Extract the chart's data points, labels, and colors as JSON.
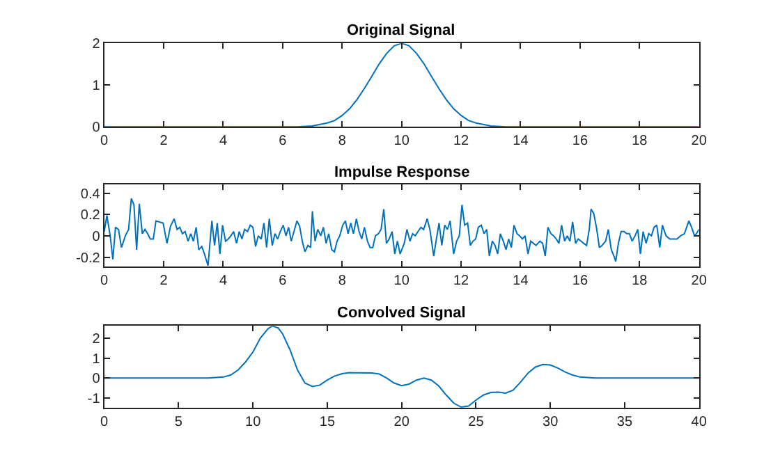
{
  "chart_data": [
    {
      "type": "line",
      "title": "Original Signal",
      "xlim": [
        0,
        20
      ],
      "xticks": [
        0,
        2,
        4,
        6,
        8,
        10,
        12,
        14,
        16,
        18,
        20
      ],
      "ylim": [
        0,
        2
      ],
      "yticks": [
        0,
        1,
        2
      ],
      "series": [
        {
          "color": "#0072bd",
          "x": [
            0,
            6.5,
            7,
            7.5,
            7.75,
            8,
            8.25,
            8.5,
            8.75,
            9,
            9.25,
            9.5,
            9.75,
            10,
            10.25,
            10.5,
            10.75,
            11,
            11.25,
            11.5,
            11.75,
            12,
            12.25,
            12.5,
            13,
            13.5,
            20
          ],
          "values": [
            0,
            0,
            0.02,
            0.09,
            0.15,
            0.27,
            0.43,
            0.65,
            0.92,
            1.21,
            1.51,
            1.76,
            1.94,
            2,
            1.94,
            1.76,
            1.51,
            1.21,
            0.92,
            0.65,
            0.43,
            0.27,
            0.15,
            0.09,
            0.02,
            0,
            0
          ]
        }
      ]
    },
    {
      "type": "line",
      "title": "Impulse Response",
      "xlim": [
        0,
        20
      ],
      "xticks": [
        0,
        2,
        4,
        6,
        8,
        10,
        12,
        14,
        16,
        18,
        20
      ],
      "ylim": [
        -0.29,
        0.48
      ],
      "yticks": [
        -0.2,
        0,
        0.2,
        0.4
      ],
      "series": [
        {
          "color": "#0072bd",
          "x": [
            0,
            0.09,
            0.2,
            0.29,
            0.38,
            0.48,
            0.58,
            0.71,
            0.82,
            0.91,
            1.0,
            1.09,
            1.18,
            1.28,
            1.37,
            1.46,
            1.55,
            1.65,
            1.74,
            1.86,
            1.98,
            2.11,
            2.23,
            2.35,
            2.45,
            2.54,
            2.63,
            2.72,
            2.82,
            2.91,
            3.0,
            3.09,
            3.18,
            3.28,
            3.37,
            3.49,
            3.62,
            3.71,
            3.8,
            3.89,
            3.98,
            4.08,
            4.17,
            4.26,
            4.35,
            4.45,
            4.54,
            4.63,
            4.72,
            4.82,
            4.91,
            5.0,
            5.09,
            5.18,
            5.28,
            5.37,
            5.46,
            5.55,
            5.65,
            5.74,
            5.83,
            5.92,
            6.02,
            6.11,
            6.2,
            6.29,
            6.38,
            6.48,
            6.57,
            6.66,
            6.75,
            6.85,
            6.94,
            7.0,
            7.09,
            7.18,
            7.28,
            7.37,
            7.46,
            7.55,
            7.65,
            7.74,
            7.83,
            7.92,
            8.02,
            8.11,
            8.2,
            8.29,
            8.38,
            8.48,
            8.57,
            8.66,
            8.75,
            8.85,
            8.94,
            9.03,
            9.12,
            9.22,
            9.31,
            9.4,
            9.49,
            9.58,
            9.68,
            9.77,
            9.86,
            9.95,
            10.09,
            10.18,
            10.28,
            10.37,
            10.46,
            10.55,
            10.65,
            10.74,
            10.86,
            10.95,
            11.08,
            11.17,
            11.26,
            11.35,
            11.45,
            11.54,
            11.63,
            11.75,
            11.85,
            11.94,
            12.03,
            12.12,
            12.22,
            12.31,
            12.4,
            12.49,
            12.58,
            12.68,
            12.77,
            12.86,
            12.95,
            13.05,
            13.14,
            13.23,
            13.32,
            13.42,
            13.51,
            13.6,
            13.69,
            13.78,
            13.88,
            13.97,
            14.06,
            14.15,
            14.25,
            14.34,
            14.43,
            14.52,
            14.65,
            14.74,
            14.83,
            14.92,
            15.02,
            15.11,
            15.2,
            15.29,
            15.38,
            15.48,
            15.57,
            15.66,
            15.75,
            15.85,
            15.94,
            16.03,
            16.12,
            16.22,
            16.31,
            16.37,
            16.46,
            16.55,
            16.65,
            16.74,
            16.86,
            16.95,
            17.05,
            17.14,
            17.2,
            17.29,
            17.38,
            17.48,
            17.57,
            17.66,
            17.75,
            17.85,
            17.94,
            18.03,
            18.12,
            18.22,
            18.31,
            18.4,
            18.49,
            18.58,
            18.68,
            18.77,
            18.89,
            19.02,
            19.14,
            19.26,
            19.38,
            19.51,
            19.66,
            19.75,
            19.85,
            19.91,
            20.0
          ],
          "values": [
            0.04,
            0.19,
            0,
            -0.22,
            0.08,
            0.06,
            -0.11,
            0,
            0.06,
            0.35,
            0.29,
            -0.13,
            0.3,
            0.02,
            0.06,
            0.02,
            -0.03,
            -0.03,
            0.14,
            0.13,
            0.12,
            -0.07,
            0.09,
            0.16,
            0.06,
            0.08,
            0.02,
            0.04,
            -0.05,
            0.02,
            -0.05,
            0.08,
            -0.13,
            -0.1,
            -0.17,
            -0.28,
            0.14,
            -0.09,
            0.12,
            -0.17,
            0.1,
            -0.05,
            -0.03,
            0,
            0.04,
            -0.07,
            0.04,
            -0.03,
            0.06,
            0.04,
            0.1,
            0.08,
            -0.1,
            0,
            -0.03,
            0.12,
            -0.11,
            0.16,
            -0.09,
            0.02,
            -0.03,
            0.04,
            0.1,
            0,
            0.08,
            -0.05,
            0.04,
            0.14,
            0.09,
            -0.05,
            -0.15,
            -0.09,
            -0.11,
            0.23,
            -0.05,
            0.06,
            0,
            0.08,
            -0.07,
            0.02,
            -0.13,
            -0.15,
            -0.05,
            0,
            0.1,
            0.14,
            0.02,
            0.12,
            0.02,
            0.16,
            0.04,
            -0.03,
            0.08,
            -0.05,
            -0.11,
            -0.11,
            0,
            0.02,
            0.06,
            0.25,
            -0.07,
            -0.03,
            0.04,
            -0.17,
            -0.05,
            -0.17,
            -0.07,
            0.06,
            -0.05,
            0.02,
            0,
            0.04,
            0.08,
            0.06,
            0.16,
            0.06,
            -0.19,
            -0.03,
            0.12,
            -0.09,
            0.1,
            0.06,
            0.14,
            -0.17,
            -0.05,
            0,
            0.29,
            0.1,
            0.12,
            -0.09,
            -0.05,
            -0.03,
            0.08,
            0.1,
            0.02,
            0.06,
            -0.19,
            -0.05,
            -0.09,
            -0.17,
            0.02,
            -0.05,
            -0.13,
            -0.03,
            -0.11,
            0.1,
            0.02,
            0,
            -0.03,
            0,
            -0.17,
            -0.05,
            -0.07,
            -0.09,
            -0.05,
            -0.07,
            -0.19,
            0.08,
            0.02,
            0,
            -0.03,
            -0.07,
            0.1,
            -0.05,
            0,
            -0.05,
            0.13,
            -0.07,
            -0.03,
            -0.05,
            -0.07,
            -0.09,
            0.06,
            0.25,
            0.21,
            0.08,
            -0.11,
            -0.09,
            -0.05,
            0.06,
            -0.13,
            -0.19,
            -0.24,
            -0.07,
            0.04,
            0.04,
            0.02,
            0.02,
            -0.05,
            0,
            0.06,
            -0.17,
            0.04,
            -0.07,
            0.02,
            0,
            0.08,
            0.1,
            -0.11,
            0.1,
            0,
            -0.03,
            -0.03,
            -0.03,
            0,
            0.02,
            0.14,
            0.08,
            0,
            0.02,
            0.06
          ]
        }
      ]
    },
    {
      "type": "line",
      "title": "Convolved Signal",
      "xlim": [
        0,
        40
      ],
      "xticks": [
        0,
        5,
        10,
        15,
        20,
        25,
        30,
        35,
        40
      ],
      "ylim": [
        -1.5,
        2.6
      ],
      "yticks": [
        -1,
        0,
        1,
        2
      ],
      "series": [
        {
          "color": "#0072bd",
          "x": [
            0,
            7,
            8,
            8.5,
            9,
            9.5,
            10,
            10.5,
            11,
            11.3,
            11.7,
            12,
            12.5,
            13,
            13.5,
            14,
            14.5,
            15,
            15.5,
            16,
            16.5,
            17,
            18,
            18.5,
            19,
            19.5,
            20,
            20.5,
            21,
            21.5,
            22,
            22.5,
            23,
            23.5,
            24,
            24.5,
            25,
            25.5,
            26,
            26.5,
            27,
            27.5,
            28,
            28.5,
            29,
            29.5,
            30,
            30.5,
            31,
            31.5,
            32,
            33,
            40
          ],
          "values": [
            0,
            0,
            0.05,
            0.15,
            0.4,
            0.8,
            1.3,
            2.0,
            2.45,
            2.6,
            2.5,
            2.2,
            1.4,
            0.4,
            -0.25,
            -0.42,
            -0.35,
            -0.1,
            0.1,
            0.22,
            0.27,
            0.26,
            0.25,
            0.2,
            0,
            -0.25,
            -0.38,
            -0.3,
            -0.1,
            0,
            -0.1,
            -0.4,
            -0.85,
            -1.25,
            -1.45,
            -1.4,
            -1.1,
            -0.85,
            -0.72,
            -0.7,
            -0.75,
            -0.6,
            -0.2,
            0.25,
            0.55,
            0.68,
            0.65,
            0.5,
            0.3,
            0.15,
            0.05,
            0,
            0
          ]
        }
      ]
    }
  ]
}
